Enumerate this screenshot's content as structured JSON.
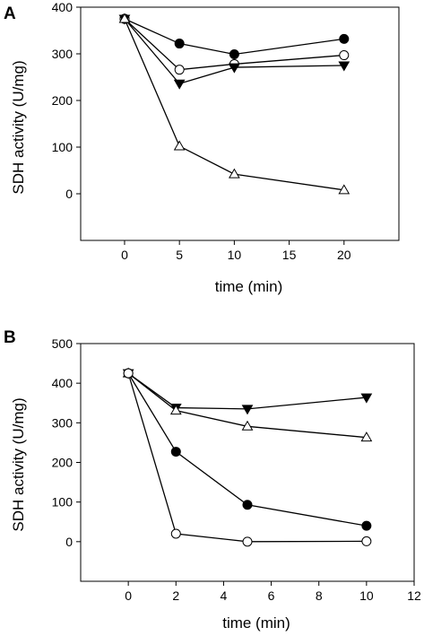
{
  "chart_data": [
    {
      "type": "line",
      "panel_label": "A",
      "xlabel": "time (min)",
      "ylabel": "SDH activity (U/mg)",
      "xlim": [
        -4,
        25
      ],
      "ylim": [
        -100,
        400
      ],
      "xticks": [
        0,
        5,
        10,
        15,
        20
      ],
      "yticks": [
        0,
        100,
        200,
        300,
        400
      ],
      "grid": false,
      "legend": false,
      "series": [
        {
          "marker": "filled-circle",
          "x": [
            0,
            5,
            10,
            20
          ],
          "y": [
            375,
            322,
            299,
            332
          ]
        },
        {
          "marker": "open-circle",
          "x": [
            0,
            5,
            10,
            20
          ],
          "y": [
            375,
            266,
            278,
            297
          ]
        },
        {
          "marker": "filled-triangle-down",
          "x": [
            0,
            5,
            10,
            20
          ],
          "y": [
            375,
            236,
            271,
            275
          ]
        },
        {
          "marker": "open-triangle-up",
          "x": [
            0,
            5,
            10,
            20
          ],
          "y": [
            375,
            102,
            42,
            8
          ]
        }
      ]
    },
    {
      "type": "line",
      "panel_label": "B",
      "xlabel": "time (min)",
      "ylabel": "SDH activity (U/mg)",
      "xlim": [
        -2,
        12
      ],
      "ylim": [
        -100,
        500
      ],
      "xticks": [
        0,
        2,
        4,
        6,
        8,
        10,
        12
      ],
      "yticks": [
        0,
        100,
        200,
        300,
        400,
        500
      ],
      "grid": false,
      "legend": false,
      "series": [
        {
          "marker": "filled-triangle-down",
          "x": [
            0,
            2,
            5,
            10
          ],
          "y": [
            425,
            338,
            335,
            364
          ]
        },
        {
          "marker": "open-triangle-up",
          "x": [
            0,
            2,
            5,
            10
          ],
          "y": [
            425,
            331,
            291,
            263
          ]
        },
        {
          "marker": "filled-circle",
          "x": [
            0,
            2,
            5,
            10
          ],
          "y": [
            425,
            227,
            93,
            40
          ]
        },
        {
          "marker": "open-circle",
          "x": [
            0,
            2,
            5,
            10
          ],
          "y": [
            425,
            20,
            0,
            1
          ]
        }
      ]
    }
  ]
}
